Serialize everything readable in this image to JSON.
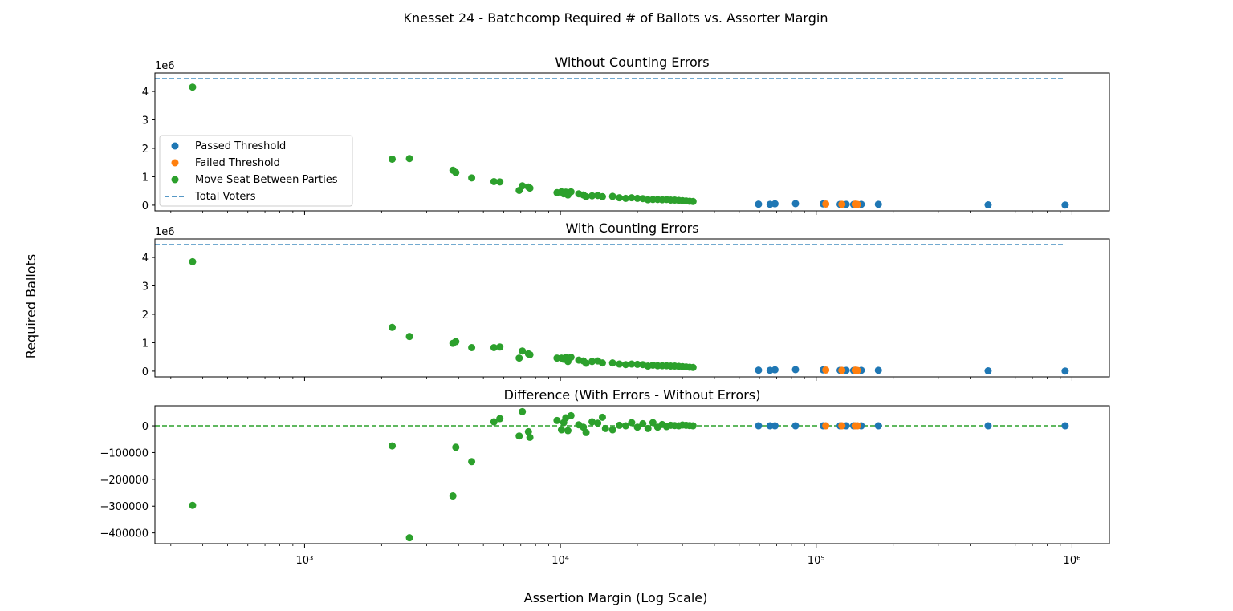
{
  "figure": {
    "title": "Knesset 24 - Batchcomp Required # of Ballots vs. Assorter Margin",
    "ylabel": "Required Ballots",
    "xlabel": "Assertion Margin (Log Scale)"
  },
  "colors": {
    "passed": "#1f77b4",
    "failed": "#ff7f0e",
    "move": "#2ca02c",
    "total_line": "#1f77b4",
    "zero_line": "#2ca02c"
  },
  "chart_data": [
    {
      "type": "scatter",
      "title": "Without Counting Errors",
      "x_scale": "log",
      "xlim": [
        260,
        1400000
      ],
      "ylim": [
        -200000,
        4650000
      ],
      "y_offset_label": "1e6",
      "y_ticks": [
        0,
        1000000,
        2000000,
        3000000,
        4000000
      ],
      "y_tick_labels": [
        "0",
        "1",
        "2",
        "3",
        "4"
      ],
      "legend": {
        "placement": "center-left",
        "entries": [
          "Passed Threshold",
          "Failed Threshold",
          "Move Seat Between Parties",
          "Total Voters"
        ]
      },
      "hline": {
        "name": "Total Voters",
        "y": 4450000,
        "x_range": [
          260,
          940000
        ],
        "style": "dashed"
      },
      "series": [
        {
          "name": "Passed Threshold",
          "points": [
            [
              59500,
              35000
            ],
            [
              66000,
              30000
            ],
            [
              69000,
              50000
            ],
            [
              83000,
              55000
            ],
            [
              106500,
              45000
            ],
            [
              124000,
              30000
            ],
            [
              131000,
              30000
            ],
            [
              140000,
              25000
            ],
            [
              150000,
              30000
            ],
            [
              175000,
              30000
            ],
            [
              470000,
              10000
            ],
            [
              940000,
              5000
            ]
          ]
        },
        {
          "name": "Failed Threshold",
          "points": [
            [
              109000,
              40000
            ],
            [
              126000,
              30000
            ],
            [
              142000,
              35000
            ],
            [
              145000,
              25000
            ]
          ]
        },
        {
          "name": "Move Seat Between Parties",
          "points": [
            [
              365,
              4150000
            ],
            [
              2200,
              1620000
            ],
            [
              2570,
              1640000
            ],
            [
              3800,
              1230000
            ],
            [
              3900,
              1150000
            ],
            [
              4500,
              960000
            ],
            [
              5500,
              830000
            ],
            [
              5800,
              820000
            ],
            [
              6900,
              520000
            ],
            [
              7100,
              680000
            ],
            [
              7500,
              640000
            ],
            [
              7600,
              600000
            ],
            [
              9700,
              440000
            ],
            [
              10100,
              470000
            ],
            [
              10300,
              400000
            ],
            [
              10500,
              460000
            ],
            [
              10700,
              360000
            ],
            [
              11000,
              470000
            ],
            [
              11800,
              400000
            ],
            [
              12300,
              360000
            ],
            [
              12600,
              300000
            ],
            [
              13300,
              330000
            ],
            [
              14000,
              340000
            ],
            [
              14600,
              300000
            ],
            [
              16000,
              310000
            ],
            [
              17000,
              260000
            ],
            [
              18000,
              240000
            ],
            [
              19000,
              260000
            ],
            [
              20000,
              240000
            ],
            [
              21000,
              230000
            ],
            [
              22000,
              190000
            ],
            [
              23000,
              200000
            ],
            [
              24000,
              200000
            ],
            [
              25000,
              190000
            ],
            [
              26000,
              200000
            ],
            [
              27000,
              180000
            ],
            [
              28000,
              180000
            ],
            [
              29000,
              170000
            ],
            [
              30000,
              160000
            ],
            [
              31000,
              150000
            ],
            [
              32000,
              140000
            ],
            [
              33000,
              130000
            ]
          ]
        }
      ]
    },
    {
      "type": "scatter",
      "title": "With Counting Errors",
      "x_scale": "log",
      "xlim": [
        260,
        1400000
      ],
      "ylim": [
        -200000,
        4650000
      ],
      "y_offset_label": "1e6",
      "y_ticks": [
        0,
        1000000,
        2000000,
        3000000,
        4000000
      ],
      "y_tick_labels": [
        "0",
        "1",
        "2",
        "3",
        "4"
      ],
      "hline": {
        "name": "Total Voters",
        "y": 4450000,
        "x_range": [
          260,
          940000
        ],
        "style": "dashed"
      },
      "series": [
        {
          "name": "Passed Threshold",
          "points": [
            [
              59500,
              35000
            ],
            [
              66000,
              30000
            ],
            [
              69000,
              50000
            ],
            [
              83000,
              55000
            ],
            [
              106500,
              45000
            ],
            [
              124000,
              30000
            ],
            [
              131000,
              30000
            ],
            [
              140000,
              25000
            ],
            [
              150000,
              30000
            ],
            [
              175000,
              30000
            ],
            [
              470000,
              10000
            ],
            [
              940000,
              5000
            ]
          ]
        },
        {
          "name": "Failed Threshold",
          "points": [
            [
              109000,
              40000
            ],
            [
              126000,
              30000
            ],
            [
              142000,
              35000
            ],
            [
              145000,
              25000
            ]
          ]
        },
        {
          "name": "Move Seat Between Parties",
          "points": [
            [
              365,
              3850000
            ],
            [
              2200,
              1540000
            ],
            [
              2570,
              1220000
            ],
            [
              3800,
              980000
            ],
            [
              3900,
              1040000
            ],
            [
              4500,
              830000
            ],
            [
              5500,
              830000
            ],
            [
              5800,
              850000
            ],
            [
              6900,
              460000
            ],
            [
              7100,
              710000
            ],
            [
              7500,
              610000
            ],
            [
              7600,
              580000
            ],
            [
              9700,
              460000
            ],
            [
              10100,
              460000
            ],
            [
              10300,
              420000
            ],
            [
              10500,
              480000
            ],
            [
              10700,
              340000
            ],
            [
              11000,
              490000
            ],
            [
              11800,
              390000
            ],
            [
              12300,
              360000
            ],
            [
              12600,
              280000
            ],
            [
              13300,
              340000
            ],
            [
              14000,
              360000
            ],
            [
              14600,
              290000
            ],
            [
              16000,
              290000
            ],
            [
              17000,
              250000
            ],
            [
              18000,
              230000
            ],
            [
              19000,
              250000
            ],
            [
              20000,
              240000
            ],
            [
              21000,
              230000
            ],
            [
              22000,
              180000
            ],
            [
              23000,
              210000
            ],
            [
              24000,
              190000
            ],
            [
              25000,
              190000
            ],
            [
              26000,
              190000
            ],
            [
              27000,
              180000
            ],
            [
              28000,
              180000
            ],
            [
              29000,
              170000
            ],
            [
              30000,
              160000
            ],
            [
              31000,
              150000
            ],
            [
              32000,
              140000
            ],
            [
              33000,
              130000
            ]
          ]
        }
      ]
    },
    {
      "type": "scatter",
      "title": "Difference (With Errors - Without Errors)",
      "x_scale": "log",
      "xlim": [
        260,
        1400000
      ],
      "ylim": [
        -440000,
        75000
      ],
      "y_ticks": [
        0,
        -100000,
        -200000,
        -300000,
        -400000
      ],
      "y_tick_labels": [
        "0",
        "−100000",
        "−200000",
        "−300000",
        "−400000"
      ],
      "x_ticks": [
        1000,
        10000,
        100000,
        1000000
      ],
      "x_tick_labels": [
        "10³",
        "10⁴",
        "10⁵",
        "10⁶"
      ],
      "hline": {
        "y": 0,
        "x_range": [
          260,
          940000
        ],
        "style": "dashed"
      },
      "series": [
        {
          "name": "Passed Threshold",
          "points": [
            [
              59500,
              0
            ],
            [
              66000,
              0
            ],
            [
              69000,
              0
            ],
            [
              83000,
              0
            ],
            [
              106500,
              0
            ],
            [
              124000,
              0
            ],
            [
              131000,
              0
            ],
            [
              140000,
              0
            ],
            [
              150000,
              0
            ],
            [
              175000,
              0
            ],
            [
              470000,
              0
            ],
            [
              940000,
              0
            ]
          ]
        },
        {
          "name": "Failed Threshold",
          "points": [
            [
              109000,
              0
            ],
            [
              126000,
              0
            ],
            [
              142000,
              0
            ],
            [
              145000,
              0
            ]
          ]
        },
        {
          "name": "Move Seat Between Parties",
          "points": [
            [
              365,
              -297000
            ],
            [
              2200,
              -75000
            ],
            [
              2570,
              -418000
            ],
            [
              3800,
              -262000
            ],
            [
              3900,
              -80000
            ],
            [
              4500,
              -134000
            ],
            [
              5500,
              15000
            ],
            [
              5800,
              27000
            ],
            [
              6900,
              -38000
            ],
            [
              7100,
              53000
            ],
            [
              7500,
              -22000
            ],
            [
              7600,
              -43000
            ],
            [
              9700,
              20000
            ],
            [
              10100,
              -15000
            ],
            [
              10300,
              12000
            ],
            [
              10500,
              30000
            ],
            [
              10700,
              -18000
            ],
            [
              11000,
              38000
            ],
            [
              11800,
              4000
            ],
            [
              12300,
              -5000
            ],
            [
              12600,
              -25000
            ],
            [
              13300,
              15000
            ],
            [
              14000,
              10000
            ],
            [
              14600,
              32000
            ],
            [
              15000,
              -10000
            ],
            [
              16000,
              -15000
            ],
            [
              17000,
              2000
            ],
            [
              18000,
              0
            ],
            [
              19000,
              12000
            ],
            [
              20000,
              -5000
            ],
            [
              21000,
              8000
            ],
            [
              22000,
              -10000
            ],
            [
              23000,
              12000
            ],
            [
              24000,
              -5000
            ],
            [
              25000,
              5000
            ],
            [
              26000,
              -3000
            ],
            [
              27000,
              2000
            ],
            [
              28000,
              1000
            ],
            [
              29000,
              0
            ],
            [
              30000,
              3000
            ],
            [
              31000,
              2000
            ],
            [
              32000,
              1000
            ],
            [
              33000,
              0
            ]
          ]
        }
      ]
    }
  ]
}
